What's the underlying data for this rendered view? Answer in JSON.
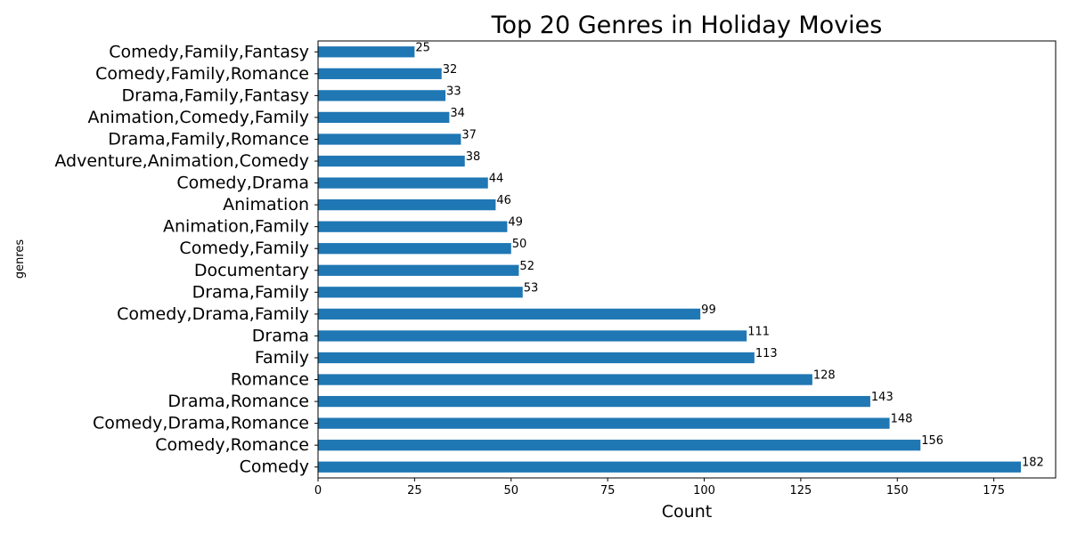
{
  "chart_data": {
    "type": "bar",
    "orientation": "horizontal",
    "title": "Top 20 Genres in Holiday Movies",
    "xlabel": "Count",
    "ylabel": "genres",
    "xlim": [
      0,
      191
    ],
    "xticks": [
      0,
      25,
      50,
      75,
      100,
      125,
      150,
      175
    ],
    "grid": false,
    "bar_color": "#1f77b4",
    "categories": [
      "Comedy",
      "Comedy,Romance",
      "Comedy,Drama,Romance",
      "Drama,Romance",
      "Romance",
      "Family",
      "Drama",
      "Comedy,Drama,Family",
      "Drama,Family",
      "Documentary",
      "Comedy,Family",
      "Animation,Family",
      "Animation",
      "Comedy,Drama",
      "Adventure,Animation,Comedy",
      "Drama,Family,Romance",
      "Animation,Comedy,Family",
      "Drama,Family,Fantasy",
      "Comedy,Family,Romance",
      "Comedy,Family,Fantasy"
    ],
    "values": [
      182,
      156,
      148,
      143,
      128,
      113,
      111,
      99,
      53,
      52,
      50,
      49,
      46,
      44,
      38,
      37,
      34,
      33,
      32,
      25
    ]
  }
}
